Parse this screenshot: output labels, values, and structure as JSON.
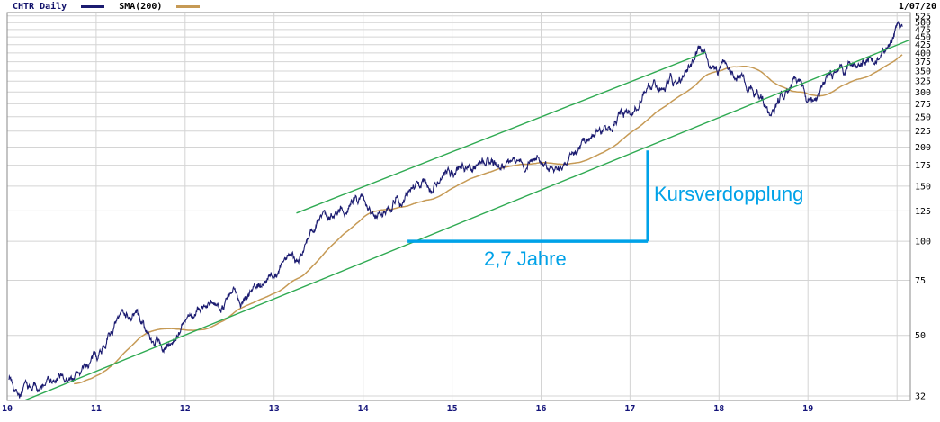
{
  "header": {
    "legend_symbol": "CHTR Daily",
    "legend_sma": "SMA(200)",
    "date": "1/07/20"
  },
  "annotations": {
    "doubling_label": "Kursverdopplung",
    "duration_label": "2,7 Jahre",
    "color": "#00a2e8",
    "start_year": 14.5,
    "end_year": 17.2,
    "price_from": 100,
    "price_to": 195
  },
  "colors": {
    "price": "#1b1b70",
    "sma": "#c69a55",
    "trend": "#2faa52",
    "grid": "#d4d4d4",
    "border": "#8a8a8a",
    "axis_text": "#000000",
    "x_label": "#14147a",
    "background": "#ffffff"
  },
  "chart_data": {
    "type": "line",
    "title": "CHTR Daily",
    "subtitle": "SMA(200)",
    "date_label": "1/07/20",
    "y_scale": "log",
    "x_range": [
      10,
      20.15
    ],
    "x_ticks": [
      "10",
      "11",
      "12",
      "13",
      "14",
      "15",
      "16",
      "17",
      "18",
      "19"
    ],
    "x_tick_years": [
      10,
      11,
      12,
      13,
      14,
      15,
      16,
      17,
      18,
      19
    ],
    "y_ticks": [
      525,
      500,
      475,
      450,
      425,
      400,
      375,
      350,
      325,
      300,
      275,
      250,
      225,
      200,
      175,
      150,
      125,
      100,
      75,
      50,
      32
    ],
    "series": [
      {
        "name": "CHTR Daily",
        "points": [
          [
            10.02,
            37
          ],
          [
            10.08,
            35
          ],
          [
            10.14,
            33
          ],
          [
            10.2,
            34.2
          ],
          [
            10.26,
            33
          ],
          [
            10.32,
            34.8
          ],
          [
            10.38,
            33.8
          ],
          [
            10.46,
            35.8
          ],
          [
            10.54,
            35
          ],
          [
            10.62,
            36.5
          ],
          [
            10.7,
            35.8
          ],
          [
            10.78,
            37.5
          ],
          [
            10.86,
            39
          ],
          [
            10.94,
            41
          ],
          [
            11.02,
            43.5
          ],
          [
            11.1,
            48
          ],
          [
            11.18,
            52
          ],
          [
            11.26,
            56
          ],
          [
            11.34,
            60
          ],
          [
            11.4,
            57
          ],
          [
            11.46,
            59
          ],
          [
            11.52,
            55
          ],
          [
            11.58,
            50
          ],
          [
            11.64,
            47
          ],
          [
            11.7,
            49
          ],
          [
            11.76,
            44.5
          ],
          [
            11.82,
            47
          ],
          [
            11.88,
            50
          ],
          [
            11.95,
            53.5
          ],
          [
            12.02,
            55.5
          ],
          [
            12.1,
            57.5
          ],
          [
            12.18,
            60.5
          ],
          [
            12.26,
            63
          ],
          [
            12.33,
            60
          ],
          [
            12.4,
            63.5
          ],
          [
            12.48,
            66
          ],
          [
            12.56,
            68
          ],
          [
            12.63,
            65
          ],
          [
            12.7,
            69
          ],
          [
            12.78,
            71.5
          ],
          [
            12.86,
            73.5
          ],
          [
            12.94,
            75.5
          ],
          [
            13.02,
            79
          ],
          [
            13.1,
            86
          ],
          [
            13.18,
            92
          ],
          [
            13.26,
            88
          ],
          [
            13.34,
            97
          ],
          [
            13.42,
            107
          ],
          [
            13.5,
            115
          ],
          [
            13.57,
            121
          ],
          [
            13.63,
            117
          ],
          [
            13.7,
            127
          ],
          [
            13.76,
            132
          ],
          [
            13.82,
            126
          ],
          [
            13.88,
            134
          ],
          [
            13.95,
            137
          ],
          [
            14.02,
            134
          ],
          [
            14.08,
            127
          ],
          [
            14.15,
            121
          ],
          [
            14.22,
            127
          ],
          [
            14.3,
            132
          ],
          [
            14.38,
            139
          ],
          [
            14.44,
            135
          ],
          [
            14.5,
            143
          ],
          [
            14.57,
            151
          ],
          [
            14.63,
            148
          ],
          [
            14.7,
            155
          ],
          [
            14.78,
            150
          ],
          [
            14.86,
            157
          ],
          [
            14.94,
            162
          ],
          [
            15.02,
            166
          ],
          [
            15.1,
            172
          ],
          [
            15.18,
            177
          ],
          [
            15.26,
            173
          ],
          [
            15.34,
            182
          ],
          [
            15.42,
            186
          ],
          [
            15.48,
            179
          ],
          [
            15.55,
            173
          ],
          [
            15.62,
            181
          ],
          [
            15.7,
            187
          ],
          [
            15.76,
            180
          ],
          [
            15.82,
            174
          ],
          [
            15.9,
            182
          ],
          [
            15.96,
            185
          ],
          [
            16.03,
            178
          ],
          [
            16.1,
            169
          ],
          [
            16.16,
            163
          ],
          [
            16.24,
            171
          ],
          [
            16.32,
            183
          ],
          [
            16.4,
            196
          ],
          [
            16.48,
            207
          ],
          [
            16.54,
            214
          ],
          [
            16.6,
            222
          ],
          [
            16.66,
            228
          ],
          [
            16.72,
            235
          ],
          [
            16.78,
            230
          ],
          [
            16.84,
            242
          ],
          [
            16.9,
            250
          ],
          [
            16.96,
            258
          ],
          [
            17.04,
            270
          ],
          [
            17.1,
            285
          ],
          [
            17.16,
            300
          ],
          [
            17.22,
            312
          ],
          [
            17.28,
            320
          ],
          [
            17.34,
            313
          ],
          [
            17.4,
            327
          ],
          [
            17.46,
            333
          ],
          [
            17.52,
            326
          ],
          [
            17.58,
            340
          ],
          [
            17.64,
            352
          ],
          [
            17.7,
            368
          ],
          [
            17.74,
            385
          ],
          [
            17.78,
            403
          ],
          [
            17.82,
            392
          ],
          [
            17.86,
            376
          ],
          [
            17.9,
            362
          ],
          [
            17.96,
            348
          ],
          [
            18.02,
            356
          ],
          [
            18.06,
            368
          ],
          [
            18.12,
            357
          ],
          [
            18.18,
            344
          ],
          [
            18.24,
            332
          ],
          [
            18.3,
            318
          ],
          [
            18.36,
            306
          ],
          [
            18.42,
            294
          ],
          [
            18.48,
            282
          ],
          [
            18.54,
            268
          ],
          [
            18.58,
            258
          ],
          [
            18.64,
            274
          ],
          [
            18.7,
            290
          ],
          [
            18.76,
            304
          ],
          [
            18.82,
            318
          ],
          [
            18.86,
            324
          ],
          [
            18.9,
            310
          ],
          [
            18.94,
            295
          ],
          [
            18.98,
            283
          ],
          [
            19.04,
            293
          ],
          [
            19.1,
            305
          ],
          [
            19.16,
            317
          ],
          [
            19.22,
            329
          ],
          [
            19.28,
            339
          ],
          [
            19.34,
            349
          ],
          [
            19.4,
            357
          ],
          [
            19.46,
            364
          ],
          [
            19.52,
            372
          ],
          [
            19.58,
            366
          ],
          [
            19.64,
            378
          ],
          [
            19.7,
            389
          ],
          [
            19.74,
            382
          ],
          [
            19.8,
            397
          ],
          [
            19.86,
            412
          ],
          [
            19.9,
            424
          ],
          [
            19.94,
            440
          ],
          [
            19.98,
            456
          ],
          [
            20.02,
            470
          ],
          [
            20.06,
            482
          ]
        ]
      },
      {
        "name": "SMA(200)",
        "derived_from": "CHTR Daily",
        "window_days": 200
      }
    ],
    "trendlines": [
      {
        "from_year": 10.2,
        "from_price": 31,
        "to_year": 20.14,
        "to_price": 440
      },
      {
        "from_year": 13.25,
        "from_price": 123,
        "to_year": 17.85,
        "to_price": 402
      }
    ]
  }
}
